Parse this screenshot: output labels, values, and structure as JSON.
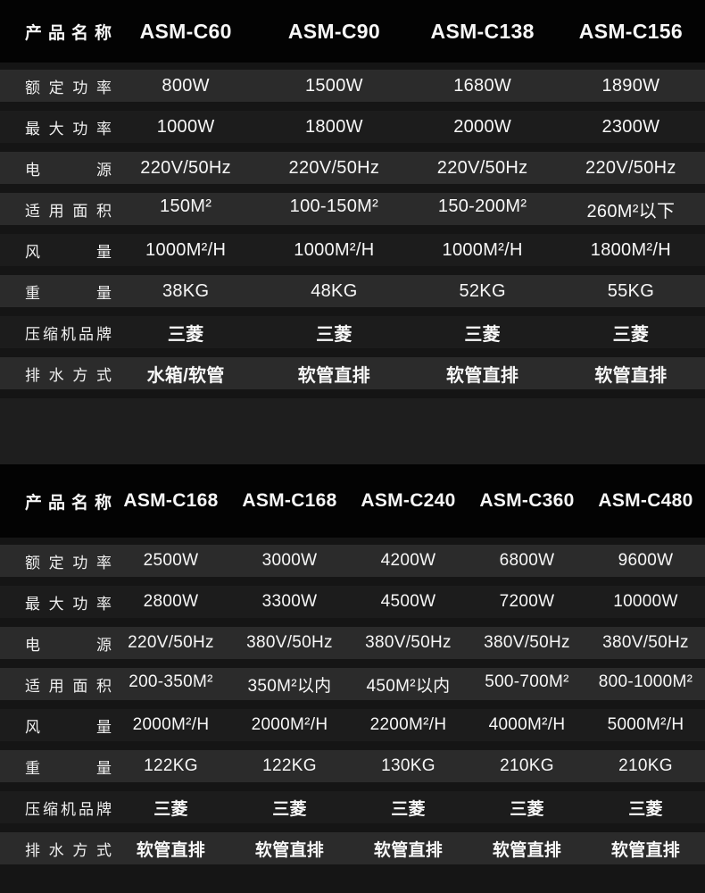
{
  "theme": {
    "page_bg": "#1e1e1e",
    "header_bg": "#030303",
    "row_light": "#2b2b2b",
    "row_dark": "#1c1c1c",
    "row_gap": "#151515",
    "text": "#f7f7f7"
  },
  "tables": [
    {
      "header_label": "产品名称",
      "products": [
        "ASM-C60",
        "ASM-C90",
        "ASM-C138",
        "ASM-C156"
      ],
      "rows": [
        {
          "label": "额定功率",
          "values": [
            "800W",
            "1500W",
            "1680W",
            "1890W"
          ]
        },
        {
          "label": "最大功率",
          "values": [
            "1000W",
            "1800W",
            "2000W",
            "2300W"
          ]
        },
        {
          "label": "电源",
          "values": [
            "220V/50Hz",
            "220V/50Hz",
            "220V/50Hz",
            "220V/50Hz"
          ]
        },
        {
          "label": "适用面积",
          "values": [
            "150M²",
            "100-150M²",
            "150-200M²",
            "260M²以下"
          ]
        },
        {
          "label": "风量",
          "values": [
            "1000M²/H",
            "1000M²/H",
            "1000M²/H",
            "1800M²/H"
          ]
        },
        {
          "label": "重量",
          "values": [
            "38KG",
            "48KG",
            "52KG",
            "55KG"
          ]
        },
        {
          "label": "压缩机品牌",
          "values": [
            "三菱",
            "三菱",
            "三菱",
            "三菱"
          ]
        },
        {
          "label": "排水方式",
          "values": [
            "水箱/软管",
            "软管直排",
            "软管直排",
            "软管直排"
          ]
        }
      ]
    },
    {
      "header_label": "产品名称",
      "products": [
        "ASM-C168",
        "ASM-C168",
        "ASM-C240",
        "ASM-C360",
        "ASM-C480"
      ],
      "rows": [
        {
          "label": "额定功率",
          "values": [
            "2500W",
            "3000W",
            "4200W",
            "6800W",
            "9600W"
          ]
        },
        {
          "label": "最大功率",
          "values": [
            "2800W",
            "3300W",
            "4500W",
            "7200W",
            "10000W"
          ]
        },
        {
          "label": "电源",
          "values": [
            "220V/50Hz",
            "380V/50Hz",
            "380V/50Hz",
            "380V/50Hz",
            "380V/50Hz"
          ]
        },
        {
          "label": "适用面积",
          "values": [
            "200-350M²",
            "350M²以内",
            "450M²以内",
            "500-700M²",
            "800-1000M²"
          ]
        },
        {
          "label": "风量",
          "values": [
            "2000M²/H",
            "2000M²/H",
            "2200M²/H",
            "4000M²/H",
            "5000M²/H"
          ]
        },
        {
          "label": "重量",
          "values": [
            "122KG",
            "122KG",
            "130KG",
            "210KG",
            "210KG"
          ]
        },
        {
          "label": "压缩机品牌",
          "values": [
            "三菱",
            "三菱",
            "三菱",
            "三菱",
            "三菱"
          ]
        },
        {
          "label": "排水方式",
          "values": [
            "软管直排",
            "软管直排",
            "软管直排",
            "软管直排",
            "软管直排"
          ]
        }
      ]
    }
  ]
}
